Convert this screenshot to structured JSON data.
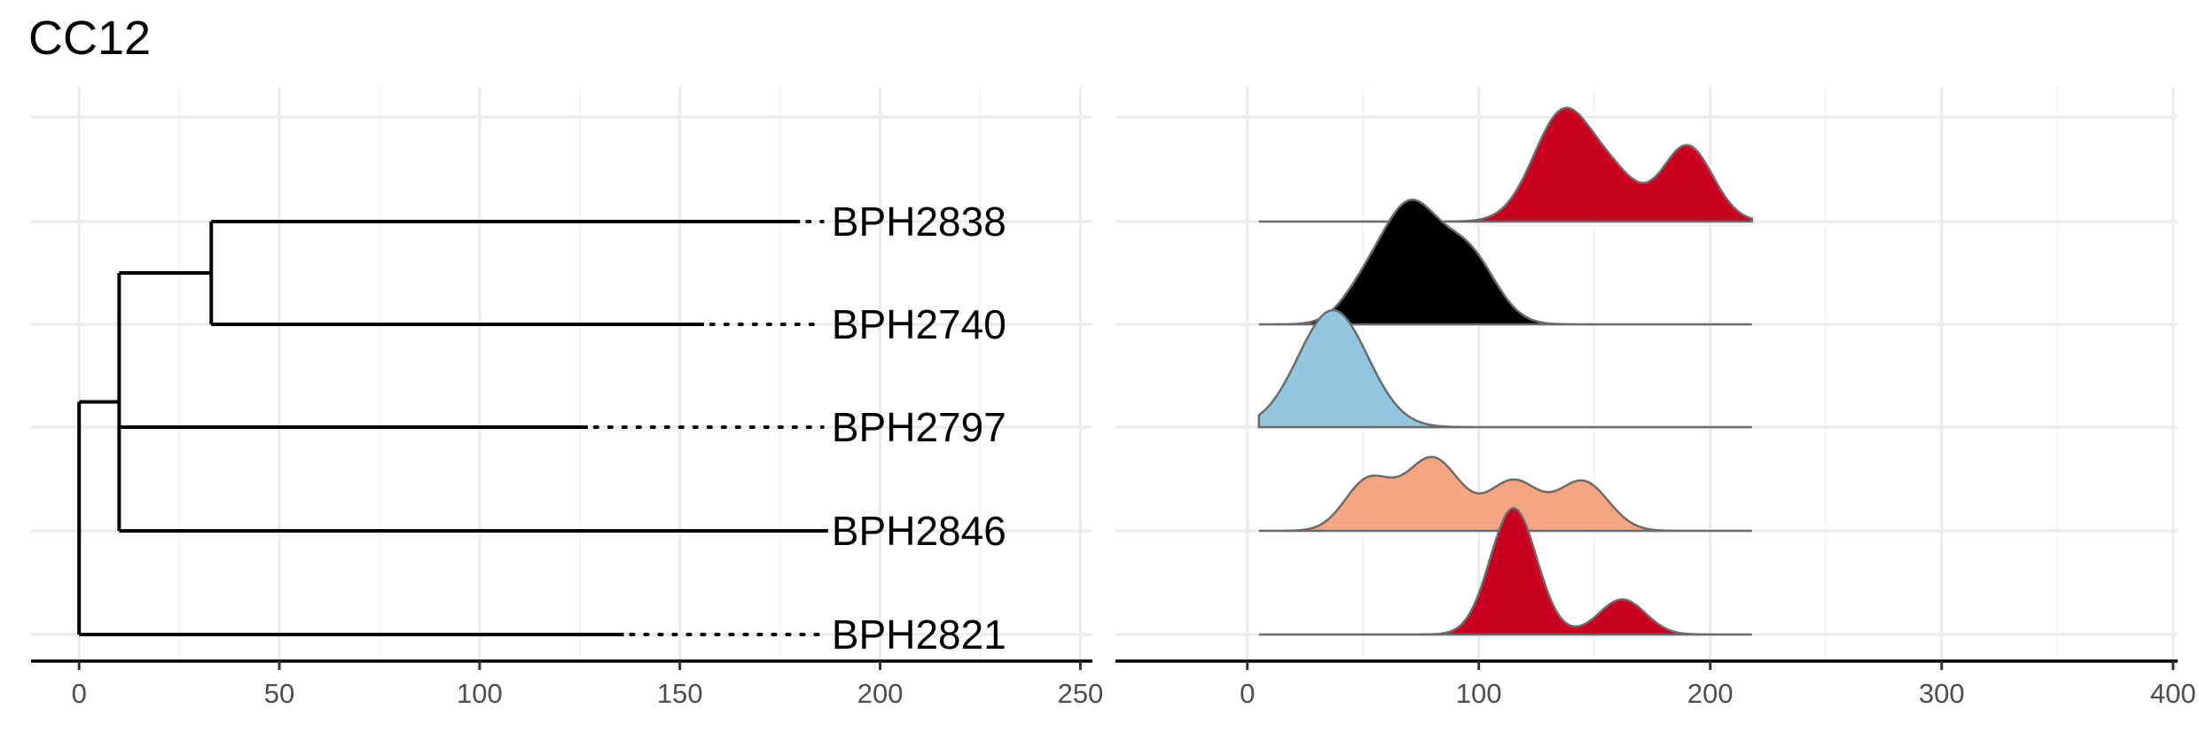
{
  "title": "CC12",
  "chart_data": [
    {
      "type": "dendrogram",
      "xlim": [
        -12,
        253
      ],
      "x_ticks": [
        0,
        50,
        100,
        150,
        200,
        250
      ],
      "tips": [
        "BPH2838",
        "BPH2740",
        "BPH2797",
        "BPH2846",
        "BPH2821"
      ],
      "nodes": {
        "root": {
          "x": 0,
          "children": [
            "n1",
            "BPH2821"
          ]
        },
        "n1": {
          "x": 10,
          "children": [
            "n2",
            "BPH2797",
            "BPH2846"
          ]
        },
        "n2": {
          "x": 33,
          "children": [
            "BPH2838",
            "BPH2740"
          ]
        }
      },
      "tip_x": {
        "BPH2838": 180,
        "BPH2740": 156,
        "BPH2797": 127,
        "BPH2846": 187,
        "BPH2821": 136
      },
      "label_x": 187,
      "grid": true
    },
    {
      "type": "ridgeline",
      "xlim": [
        -57,
        402
      ],
      "x_ticks": [
        0,
        100,
        200,
        300,
        400
      ],
      "x_range": [
        5,
        218
      ],
      "grid": true,
      "series": [
        {
          "row": "BPH2838",
          "color": "#ca0020",
          "peaks": [
            {
              "mu": 137,
              "sd": 13,
              "h": 0.95
            },
            {
              "mu": 160,
              "sd": 10,
              "h": 0.28
            },
            {
              "mu": 190,
              "sd": 11,
              "h": 0.65
            }
          ]
        },
        {
          "row": "BPH2740",
          "color": "#000000",
          "peaks": [
            {
              "mu": 70,
              "sd": 12,
              "h": 0.96
            },
            {
              "mu": 95,
              "sd": 12,
              "h": 0.6
            },
            {
              "mu": 50,
              "sd": 10,
              "h": 0.25
            }
          ]
        },
        {
          "row": "BPH2797",
          "color": "#92c5de",
          "peaks": [
            {
              "mu": 37,
              "sd": 15,
              "h": 1.0
            }
          ]
        },
        {
          "row": "BPH2846",
          "color": "#f4a582",
          "peaks": [
            {
              "mu": 52,
              "sd": 10,
              "h": 0.42
            },
            {
              "mu": 80,
              "sd": 12,
              "h": 0.62
            },
            {
              "mu": 115,
              "sd": 11,
              "h": 0.42
            },
            {
              "mu": 145,
              "sd": 11,
              "h": 0.42
            }
          ]
        },
        {
          "row": "BPH2821",
          "color": "#ca0020",
          "peaks": [
            {
              "mu": 115,
              "sd": 10,
              "h": 1.08
            },
            {
              "mu": 162,
              "sd": 10,
              "h": 0.3
            }
          ]
        }
      ]
    }
  ]
}
